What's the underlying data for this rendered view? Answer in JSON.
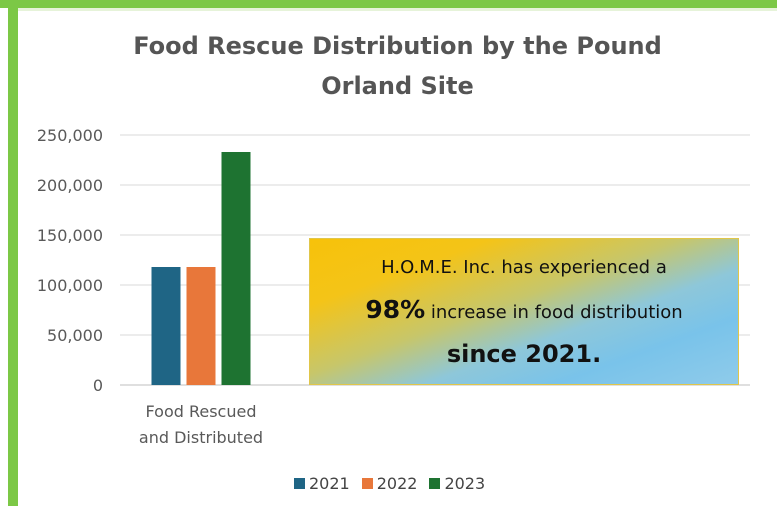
{
  "chart_data": {
    "type": "bar",
    "title": "Food Rescue Distribution by the Pound",
    "subtitle": "Orland Site",
    "categories": [
      "Food Rescued and Distributed"
    ],
    "category_lines": [
      "Food Rescued",
      "and Distributed"
    ],
    "series": [
      {
        "name": "2021",
        "values": [
          118000
        ],
        "color": "#1f6585"
      },
      {
        "name": "2022",
        "values": [
          118000
        ],
        "color": "#e8773a"
      },
      {
        "name": "2023",
        "values": [
          233000
        ],
        "color": "#1e7331"
      }
    ],
    "ylim": [
      0,
      250000
    ],
    "yticks": [
      "0",
      "50,000",
      "100,000",
      "150,000",
      "200,000",
      "250,000"
    ],
    "ytick_values": [
      0,
      50000,
      100000,
      150000,
      200000,
      250000
    ],
    "grid": true,
    "legend_position": "bottom"
  },
  "callout": {
    "line1": "H.O.M.E. Inc. has experienced a",
    "highlight": "98%",
    "line2_rest": " increase in food distribution",
    "line3": "since 2021."
  },
  "colors": {
    "frame": "#7cc846",
    "gridline": "#d9d9d9",
    "axis_text": "#595959"
  }
}
